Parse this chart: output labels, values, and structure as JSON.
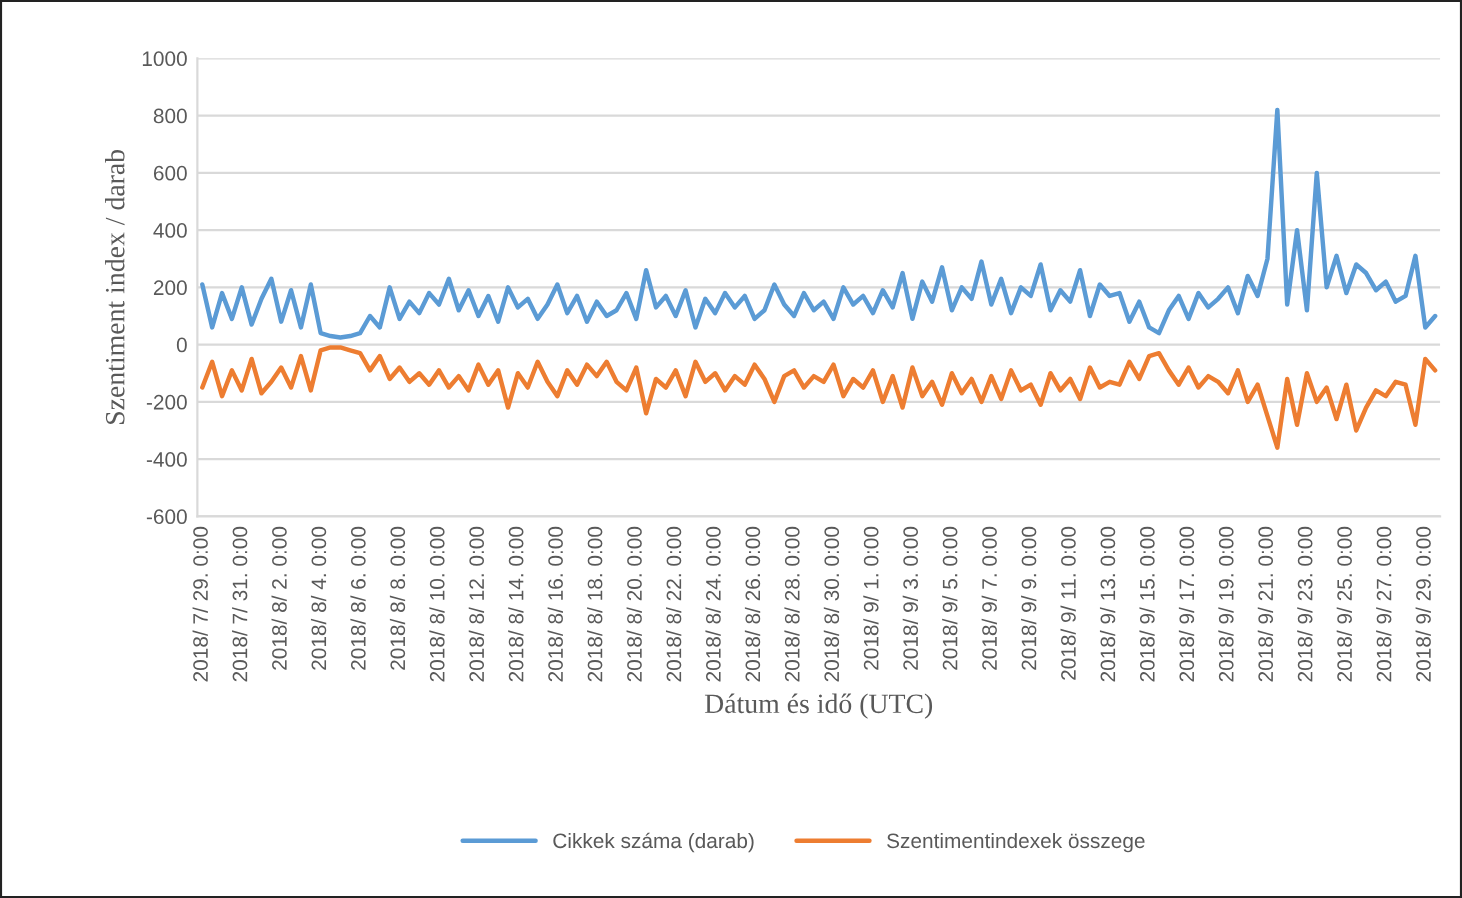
{
  "chart_data": {
    "type": "line",
    "xlabel": "Dátum és idő (UTC)",
    "ylabel": "Szentiment index / darab",
    "categories": [
      "2018/ 7/ 29. 0:00",
      null,
      null,
      null,
      "2018/ 7/ 31. 0:00",
      null,
      null,
      null,
      "2018/ 8/ 2. 0:00",
      null,
      null,
      null,
      "2018/ 8/ 4. 0:00",
      null,
      null,
      null,
      "2018/ 8/ 6. 0:00",
      null,
      null,
      null,
      "2018/ 8/ 8. 0:00",
      null,
      null,
      null,
      "2018/ 8/ 10. 0:00",
      null,
      null,
      null,
      "2018/ 8/ 12. 0:00",
      null,
      null,
      null,
      "2018/ 8/ 14. 0:00",
      null,
      null,
      null,
      "2018/ 8/ 16. 0:00",
      null,
      null,
      null,
      "2018/ 8/ 18. 0:00",
      null,
      null,
      null,
      "2018/ 8/ 20. 0:00",
      null,
      null,
      null,
      "2018/ 8/ 22. 0:00",
      null,
      null,
      null,
      "2018/ 8/ 24. 0:00",
      null,
      null,
      null,
      "2018/ 8/ 26. 0:00",
      null,
      null,
      null,
      "2018/ 8/ 28. 0:00",
      null,
      null,
      null,
      "2018/ 8/ 30. 0:00",
      null,
      null,
      null,
      "2018/ 9/ 1. 0:00",
      null,
      null,
      null,
      "2018/ 9/ 3. 0:00",
      null,
      null,
      null,
      "2018/ 9/ 5. 0:00",
      null,
      null,
      null,
      "2018/ 9/ 7. 0:00",
      null,
      null,
      null,
      "2018/ 9/ 9. 0:00",
      null,
      null,
      null,
      "2018/ 9/ 11. 0:00",
      null,
      null,
      null,
      "2018/ 9/ 13. 0:00",
      null,
      null,
      null,
      "2018/ 9/ 15. 0:00",
      null,
      null,
      null,
      "2018/ 9/ 17. 0:00",
      null,
      null,
      null,
      "2018/ 9/ 19. 0:00",
      null,
      null,
      null,
      "2018/ 9/ 21. 0:00",
      null,
      null,
      null,
      "2018/ 9/ 23. 0:00",
      null,
      null,
      null,
      "2018/ 9/ 25. 0:00",
      null,
      null,
      null,
      "2018/ 9/ 27. 0:00",
      null,
      null,
      null,
      "2018/ 9/ 29. 0:00",
      null
    ],
    "series": [
      {
        "name": "Cikkek száma (darab)",
        "color": "#5b9bd5",
        "values": [
          210,
          60,
          180,
          90,
          200,
          70,
          160,
          230,
          80,
          190,
          60,
          210,
          40,
          30,
          25,
          30,
          40,
          100,
          60,
          200,
          90,
          150,
          110,
          180,
          140,
          230,
          120,
          190,
          100,
          170,
          80,
          200,
          130,
          160,
          90,
          140,
          210,
          110,
          170,
          80,
          150,
          100,
          120,
          180,
          90,
          260,
          130,
          170,
          100,
          190,
          60,
          160,
          110,
          180,
          130,
          170,
          90,
          120,
          210,
          140,
          100,
          180,
          120,
          150,
          90,
          200,
          140,
          170,
          110,
          190,
          130,
          250,
          90,
          220,
          150,
          270,
          120,
          200,
          160,
          290,
          140,
          230,
          110,
          200,
          170,
          280,
          120,
          190,
          150,
          260,
          100,
          210,
          170,
          180,
          80,
          150,
          60,
          40,
          120,
          170,
          90,
          180,
          130,
          160,
          200,
          110,
          240,
          170,
          300,
          820,
          140,
          400,
          120,
          600,
          200,
          310,
          180,
          280,
          250,
          190,
          220,
          150,
          170,
          310,
          60,
          100
        ]
      },
      {
        "name": "Szentimentindexek összege",
        "color": "#ed7d31",
        "values": [
          -150,
          -60,
          -180,
          -90,
          -160,
          -50,
          -170,
          -130,
          -80,
          -150,
          -40,
          -160,
          -20,
          -10,
          -10,
          -20,
          -30,
          -90,
          -40,
          -120,
          -80,
          -130,
          -100,
          -140,
          -90,
          -150,
          -110,
          -160,
          -70,
          -140,
          -90,
          -220,
          -100,
          -150,
          -60,
          -130,
          -180,
          -90,
          -140,
          -70,
          -110,
          -60,
          -130,
          -160,
          -80,
          -240,
          -120,
          -150,
          -90,
          -180,
          -60,
          -130,
          -100,
          -160,
          -110,
          -140,
          -70,
          -120,
          -200,
          -110,
          -90,
          -150,
          -110,
          -130,
          -70,
          -180,
          -120,
          -150,
          -90,
          -200,
          -110,
          -220,
          -80,
          -180,
          -130,
          -210,
          -100,
          -170,
          -120,
          -200,
          -110,
          -190,
          -90,
          -160,
          -140,
          -210,
          -100,
          -160,
          -120,
          -190,
          -80,
          -150,
          -130,
          -140,
          -60,
          -120,
          -40,
          -30,
          -90,
          -140,
          -80,
          -150,
          -110,
          -130,
          -170,
          -90,
          -200,
          -140,
          -250,
          -360,
          -120,
          -280,
          -100,
          -200,
          -150,
          -260,
          -140,
          -300,
          -220,
          -160,
          -180,
          -130,
          -140,
          -280,
          -50,
          -90
        ]
      }
    ],
    "ylim": [
      -600,
      1000
    ],
    "yticks": [
      -600,
      -400,
      -200,
      0,
      200,
      400,
      600,
      800,
      1000
    ],
    "grid": "y",
    "legend": "bottom",
    "marker": "none",
    "line_style": "solid"
  }
}
